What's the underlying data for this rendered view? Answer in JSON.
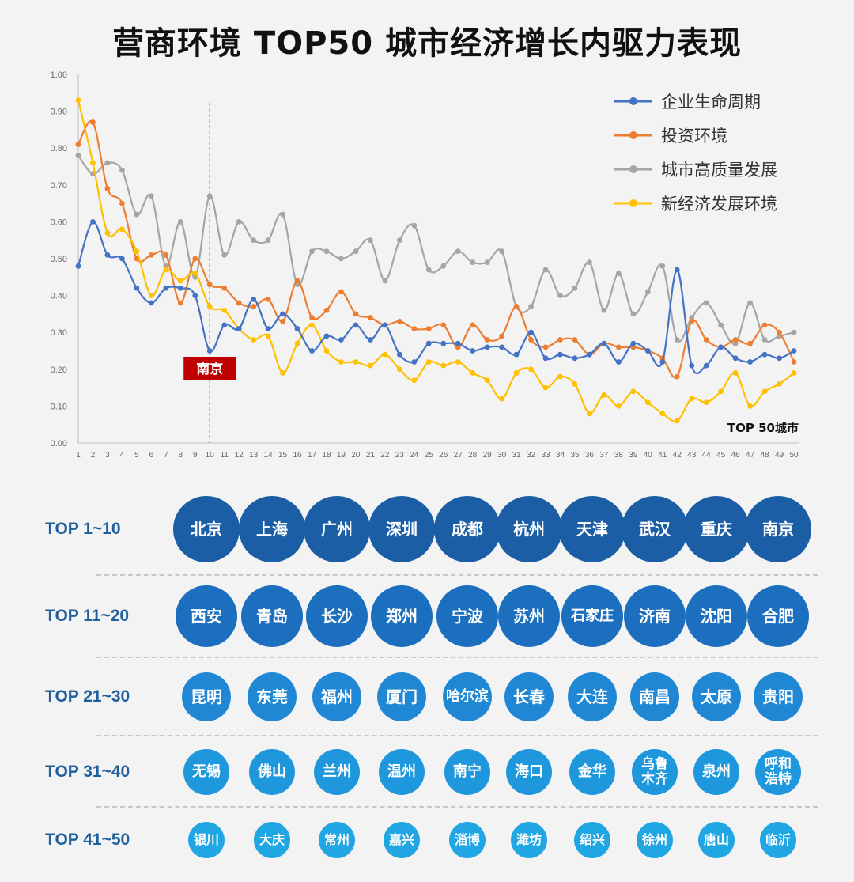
{
  "title": "营商环境 TOP50 城市经济增长内驱力表现",
  "chart_data": {
    "type": "line",
    "x": [
      1,
      2,
      3,
      4,
      5,
      6,
      7,
      8,
      9,
      10,
      11,
      12,
      13,
      14,
      15,
      16,
      17,
      18,
      19,
      20,
      21,
      22,
      23,
      24,
      25,
      26,
      27,
      28,
      29,
      30,
      31,
      32,
      33,
      34,
      35,
      36,
      37,
      38,
      39,
      40,
      41,
      42,
      43,
      44,
      45,
      46,
      47,
      48,
      49,
      50
    ],
    "ylim": [
      0,
      1.0
    ],
    "yticks": [
      "0.00",
      "0.10",
      "0.20",
      "0.30",
      "0.40",
      "0.50",
      "0.60",
      "0.70",
      "0.80",
      "0.90",
      "1.00"
    ],
    "x_note": "TOP 50城市",
    "marker": {
      "label": "南京",
      "x": 10
    },
    "legend_position": "top-right",
    "series": [
      {
        "name": "企业生命周期",
        "color": "#4472c4",
        "values": [
          0.48,
          0.6,
          0.51,
          0.5,
          0.42,
          0.38,
          0.42,
          0.42,
          0.4,
          0.25,
          0.32,
          0.31,
          0.39,
          0.31,
          0.35,
          0.31,
          0.25,
          0.29,
          0.28,
          0.32,
          0.28,
          0.32,
          0.24,
          0.22,
          0.27,
          0.27,
          0.27,
          0.25,
          0.26,
          0.26,
          0.24,
          0.3,
          0.23,
          0.24,
          0.23,
          0.24,
          0.27,
          0.22,
          0.27,
          0.25,
          0.22,
          0.47,
          0.21,
          0.21,
          0.26,
          0.23,
          0.22,
          0.24,
          0.23,
          0.25
        ]
      },
      {
        "name": "投资环境",
        "color": "#ed7d31",
        "values": [
          0.81,
          0.87,
          0.69,
          0.65,
          0.5,
          0.51,
          0.51,
          0.38,
          0.5,
          0.43,
          0.42,
          0.38,
          0.37,
          0.39,
          0.33,
          0.44,
          0.34,
          0.36,
          0.41,
          0.35,
          0.34,
          0.32,
          0.33,
          0.31,
          0.31,
          0.32,
          0.26,
          0.32,
          0.28,
          0.29,
          0.37,
          0.28,
          0.26,
          0.28,
          0.28,
          0.24,
          0.27,
          0.26,
          0.26,
          0.25,
          0.23,
          0.18,
          0.33,
          0.28,
          0.26,
          0.28,
          0.27,
          0.32,
          0.3,
          0.22
        ]
      },
      {
        "name": "城市高质量发展",
        "color": "#a5a5a5",
        "values": [
          0.78,
          0.73,
          0.76,
          0.74,
          0.62,
          0.67,
          0.48,
          0.6,
          0.45,
          0.67,
          0.51,
          0.6,
          0.55,
          0.55,
          0.62,
          0.43,
          0.52,
          0.52,
          0.5,
          0.52,
          0.55,
          0.44,
          0.55,
          0.59,
          0.47,
          0.48,
          0.52,
          0.49,
          0.49,
          0.52,
          0.37,
          0.37,
          0.47,
          0.4,
          0.42,
          0.49,
          0.36,
          0.46,
          0.35,
          0.41,
          0.48,
          0.28,
          0.34,
          0.38,
          0.32,
          0.27,
          0.38,
          0.28,
          0.29,
          0.3
        ]
      },
      {
        "name": "新经济发展环境",
        "color": "#ffc000",
        "values": [
          0.93,
          0.76,
          0.57,
          0.58,
          0.52,
          0.4,
          0.47,
          0.44,
          0.46,
          0.37,
          0.36,
          0.31,
          0.28,
          0.29,
          0.19,
          0.27,
          0.32,
          0.25,
          0.22,
          0.22,
          0.21,
          0.24,
          0.2,
          0.17,
          0.22,
          0.21,
          0.22,
          0.19,
          0.17,
          0.12,
          0.19,
          0.2,
          0.15,
          0.18,
          0.16,
          0.08,
          0.13,
          0.1,
          0.14,
          0.11,
          0.08,
          0.06,
          0.12,
          0.11,
          0.14,
          0.19,
          0.1,
          0.14,
          0.16,
          0.19
        ]
      }
    ]
  },
  "tiers": [
    {
      "label": "TOP 1~10",
      "color": "#1b5ea6",
      "size": 84,
      "font": 20,
      "cities": [
        "北京",
        "上海",
        "广州",
        "深圳",
        "成都",
        "杭州",
        "天津",
        "武汉",
        "重庆",
        "南京"
      ]
    },
    {
      "label": "TOP 11~20",
      "color": "#1c6fbe",
      "size": 78,
      "font": 20,
      "cities": [
        "西安",
        "青岛",
        "长沙",
        "郑州",
        "宁波",
        "苏州",
        "石家庄",
        "济南",
        "沈阳",
        "合肥"
      ]
    },
    {
      "label": "TOP 21~30",
      "color": "#1f87d3",
      "size": 62,
      "font": 20,
      "cities": [
        "昆明",
        "东莞",
        "福州",
        "厦门",
        "哈尔滨",
        "长春",
        "大连",
        "南昌",
        "太原",
        "贵阳"
      ]
    },
    {
      "label": "TOP 31~40",
      "color": "#1f97dc",
      "size": 58,
      "font": 18,
      "cities": [
        "无锡",
        "佛山",
        "兰州",
        "温州",
        "南宁",
        "海口",
        "金华",
        "乌鲁\n木齐",
        "泉州",
        "呼和\n浩特"
      ]
    },
    {
      "label": "TOP 41~50",
      "color": "#21a6e4",
      "size": 46,
      "font": 16,
      "cities": [
        "银川",
        "大庆",
        "常州",
        "嘉兴",
        "淄博",
        "潍坊",
        "绍兴",
        "徐州",
        "唐山",
        "临沂"
      ]
    }
  ]
}
